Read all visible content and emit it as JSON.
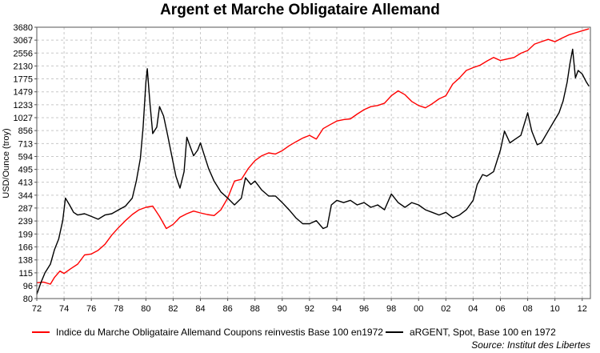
{
  "chart_data": {
    "type": "line",
    "title": "Argent et Marche Obligataire Allemand",
    "ylabel": "USD/Ounce (troy)",
    "xlabel": "",
    "y_scale": "log",
    "ylim": [
      80,
      3680
    ],
    "xlim": [
      1972,
      2012.6
    ],
    "y_ticks": [
      80,
      96,
      115,
      138,
      166,
      199,
      239,
      287,
      344,
      413,
      495,
      594,
      713,
      856,
      1027,
      1233,
      1479,
      1775,
      2130,
      2556,
      3067,
      3680
    ],
    "x_ticks": [
      1972,
      1974,
      1976,
      1978,
      1980,
      1982,
      1984,
      1986,
      1988,
      1990,
      1992,
      1994,
      1996,
      1998,
      2000,
      2002,
      2004,
      2006,
      2008,
      2010,
      2012
    ],
    "x_tick_labels": [
      "72",
      "74",
      "76",
      "78",
      "80",
      "82",
      "84",
      "86",
      "88",
      "90",
      "92",
      "94",
      "96",
      "98",
      "00",
      "02",
      "04",
      "06",
      "08",
      "10",
      "12"
    ],
    "grid": true,
    "legend_position": "bottom",
    "series": [
      {
        "name": "Indice du Marche Obligataire Allemand Coupons reinvestis Base 100 en1972",
        "color": "#ff0000",
        "x": [
          1972.0,
          1972.5,
          1973.0,
          1973.3,
          1973.7,
          1974.0,
          1974.5,
          1975.0,
          1975.5,
          1976.0,
          1976.5,
          1977.0,
          1977.5,
          1978.0,
          1978.5,
          1979.0,
          1979.5,
          1980.0,
          1980.5,
          1981.0,
          1981.5,
          1982.0,
          1982.5,
          1983.0,
          1983.5,
          1984.0,
          1984.5,
          1985.0,
          1985.5,
          1986.0,
          1986.5,
          1987.0,
          1987.5,
          1988.0,
          1988.5,
          1989.0,
          1989.5,
          1990.0,
          1990.5,
          1991.0,
          1991.5,
          1992.0,
          1992.5,
          1993.0,
          1993.5,
          1994.0,
          1994.5,
          1995.0,
          1995.5,
          1996.0,
          1996.5,
          1997.0,
          1997.5,
          1998.0,
          1998.5,
          1999.0,
          1999.5,
          2000.0,
          2000.5,
          2001.0,
          2001.5,
          2002.0,
          2002.5,
          2003.0,
          2003.5,
          2004.0,
          2004.5,
          2005.0,
          2005.5,
          2006.0,
          2006.5,
          2007.0,
          2007.5,
          2008.0,
          2008.5,
          2009.0,
          2009.5,
          2010.0,
          2010.5,
          2011.0,
          2011.5,
          2012.0,
          2012.5
        ],
        "values": [
          100,
          101,
          98,
          108,
          118,
          114,
          122,
          130,
          148,
          150,
          158,
          172,
          196,
          218,
          240,
          262,
          280,
          290,
          295,
          255,
          215,
          228,
          252,
          265,
          275,
          268,
          262,
          258,
          280,
          330,
          420,
          430,
          500,
          560,
          600,
          625,
          615,
          645,
          690,
          730,
          770,
          800,
          760,
          880,
          930,
          980,
          1000,
          1010,
          1080,
          1150,
          1200,
          1220,
          1260,
          1400,
          1500,
          1420,
          1290,
          1220,
          1180,
          1250,
          1340,
          1400,
          1650,
          1800,
          2000,
          2080,
          2150,
          2280,
          2400,
          2300,
          2350,
          2400,
          2550,
          2650,
          2900,
          3000,
          3100,
          3000,
          3150,
          3300,
          3400,
          3500,
          3600
        ]
      },
      {
        "name": "aRGENT, Spot, Base 100 en 1972",
        "color": "#000000",
        "x": [
          1972.0,
          1972.3,
          1972.6,
          1973.0,
          1973.3,
          1973.6,
          1973.9,
          1974.1,
          1974.4,
          1974.7,
          1975.0,
          1975.5,
          1976.0,
          1976.5,
          1977.0,
          1977.5,
          1978.0,
          1978.5,
          1979.0,
          1979.3,
          1979.6,
          1979.8,
          1980.0,
          1980.1,
          1980.3,
          1980.5,
          1980.8,
          1981.0,
          1981.3,
          1981.6,
          1981.9,
          1982.2,
          1982.5,
          1982.8,
          1983.0,
          1983.2,
          1983.5,
          1983.8,
          1984.0,
          1984.3,
          1984.6,
          1985.0,
          1985.5,
          1986.0,
          1986.5,
          1987.0,
          1987.3,
          1987.7,
          1988.0,
          1988.5,
          1989.0,
          1989.5,
          1990.0,
          1990.5,
          1991.0,
          1991.5,
          1992.0,
          1992.5,
          1993.0,
          1993.3,
          1993.6,
          1994.0,
          1994.5,
          1995.0,
          1995.5,
          1996.0,
          1996.5,
          1997.0,
          1997.5,
          1998.0,
          1998.5,
          1999.0,
          1999.5,
          2000.0,
          2000.5,
          2001.0,
          2001.5,
          2002.0,
          2002.5,
          2003.0,
          2003.5,
          2004.0,
          2004.3,
          2004.7,
          2005.0,
          2005.5,
          2006.0,
          2006.3,
          2006.7,
          2007.0,
          2007.5,
          2008.0,
          2008.3,
          2008.7,
          2009.0,
          2009.5,
          2010.0,
          2010.3,
          2010.6,
          2010.9,
          2011.1,
          2011.3,
          2011.5,
          2011.7,
          2012.0,
          2012.3,
          2012.5
        ],
        "values": [
          85,
          100,
          115,
          130,
          160,
          185,
          240,
          330,
          300,
          270,
          260,
          265,
          255,
          245,
          260,
          265,
          280,
          295,
          330,
          420,
          580,
          900,
          1700,
          2050,
          1250,
          820,
          900,
          1200,
          1050,
          800,
          600,
          450,
          380,
          480,
          780,
          700,
          600,
          650,
          720,
          600,
          500,
          420,
          360,
          330,
          300,
          330,
          440,
          400,
          420,
          370,
          340,
          340,
          310,
          280,
          250,
          230,
          230,
          240,
          215,
          220,
          300,
          320,
          310,
          320,
          300,
          310,
          290,
          300,
          280,
          350,
          310,
          290,
          310,
          300,
          280,
          270,
          260,
          270,
          250,
          260,
          280,
          320,
          400,
          460,
          450,
          480,
          650,
          850,
          720,
          750,
          800,
          1100,
          850,
          700,
          720,
          850,
          1000,
          1100,
          1300,
          1700,
          2200,
          2700,
          1800,
          2000,
          1900,
          1700,
          1600
        ]
      }
    ],
    "source": "Source: Institut des Libertes"
  }
}
